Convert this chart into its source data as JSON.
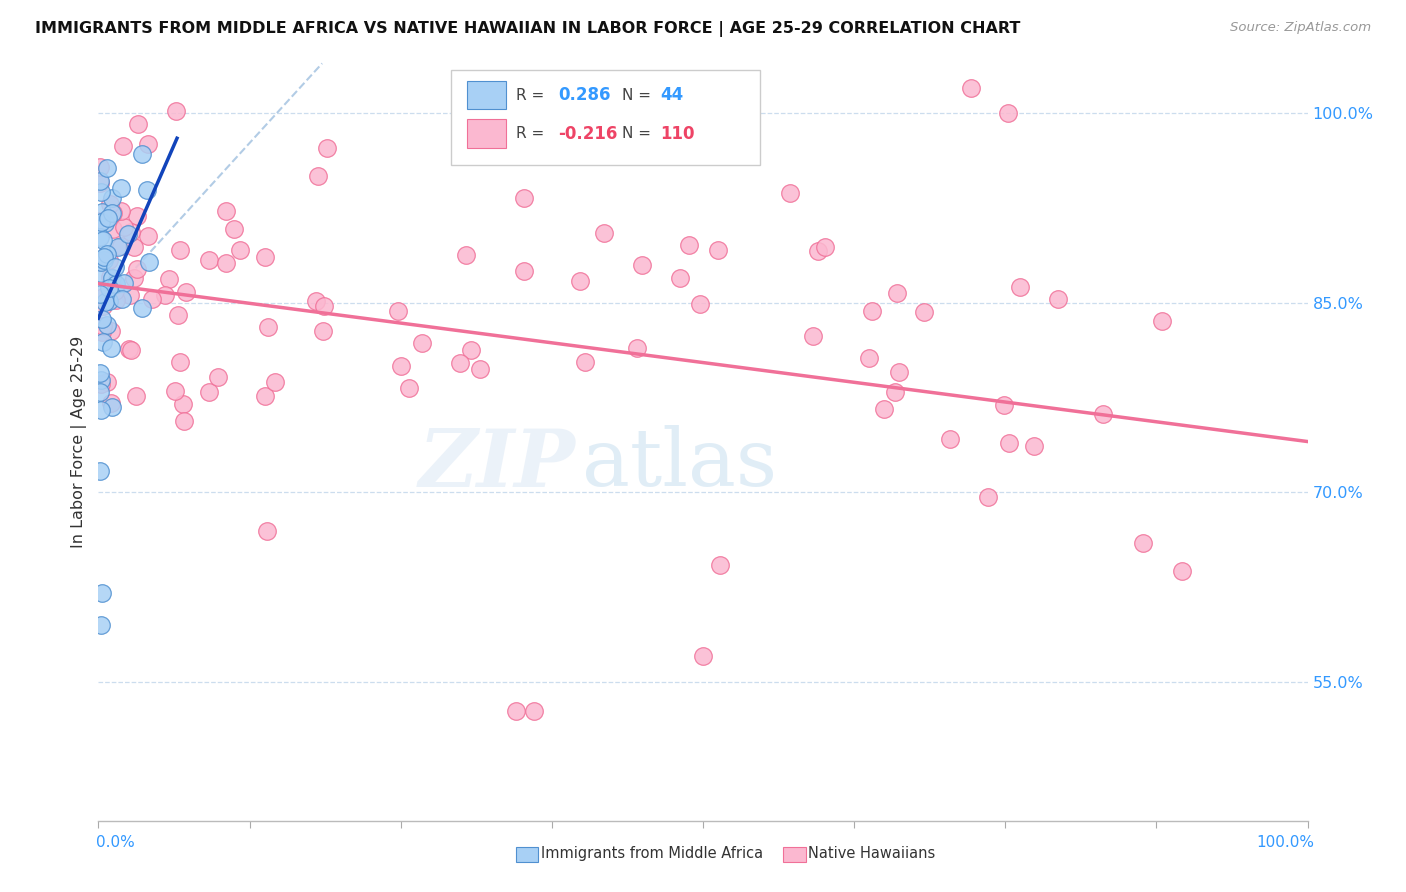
{
  "title": "IMMIGRANTS FROM MIDDLE AFRICA VS NATIVE HAWAIIAN IN LABOR FORCE | AGE 25-29 CORRELATION CHART",
  "source": "Source: ZipAtlas.com",
  "ylabel": "In Labor Force | Age 25-29",
  "blue_R": 0.286,
  "blue_N": 44,
  "pink_R": -0.216,
  "pink_N": 110,
  "blue_color": "#a8d0f5",
  "pink_color": "#fbb8d0",
  "blue_edge": "#5090d0",
  "pink_edge": "#f07098",
  "blue_trend_color": "#1144bb",
  "pink_trend_color": "#f07098",
  "ref_line_color": "#99bbdd",
  "grid_color": "#ddeeff",
  "right_tick_color": "#3399ff",
  "xlim": [
    0.0,
    1.0
  ],
  "ylim": [
    0.44,
    1.04
  ],
  "right_yticks": [
    0.55,
    0.7,
    0.85,
    1.0
  ],
  "right_yticklabels": [
    "55.0%",
    "70.0%",
    "85.0%",
    "100.0%"
  ],
  "blue_seed": 42,
  "pink_seed": 99
}
